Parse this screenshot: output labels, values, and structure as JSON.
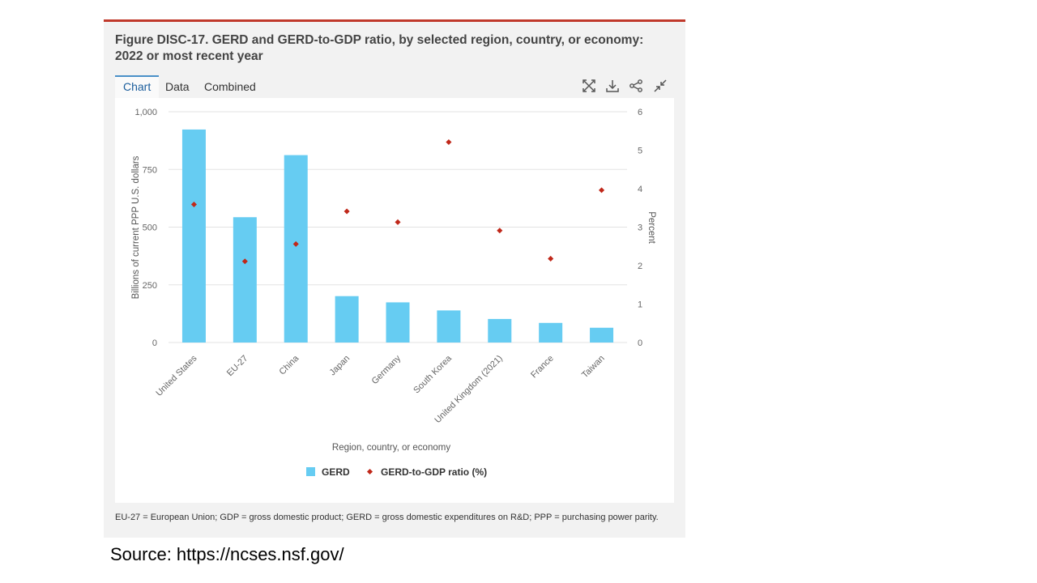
{
  "figure": {
    "title": "Figure DISC-17. GERD and GERD-to-GDP ratio, by selected region, country, or economy: 2022 or most recent year",
    "tabs": [
      "Chart",
      "Data",
      "Combined"
    ],
    "active_tab": "Chart",
    "toolbar_icons": [
      "expand-icon",
      "download-icon",
      "share-icon",
      "collapse-icon"
    ],
    "footnote": "EU-27 = European Union; GDP = gross domestic product; GERD = gross domestic expenditures on R&D; PPP = purchasing power parity.",
    "source": "Source: https://ncses.nsf.gov/"
  },
  "colors": {
    "bar": "#66ccf2",
    "marker": "#c0281a",
    "accent": "#c0392b",
    "tab_active": "#1a5d9c"
  },
  "chart_data": {
    "type": "bar",
    "title": "Figure DISC-17. GERD and GERD-to-GDP ratio, by selected region, country, or economy: 2022 or most recent year",
    "categories": [
      "United States",
      "EU-27",
      "China",
      "Japan",
      "Germany",
      "South Korea",
      "United Kingdom (2021)",
      "France",
      "Taiwan"
    ],
    "series": [
      {
        "name": "GERD",
        "type": "bar",
        "axis": "left",
        "values": [
          923,
          543,
          812,
          201,
          174,
          139,
          102,
          85,
          64
        ]
      },
      {
        "name": "GERD-to-GDP ratio (%)",
        "type": "scatter",
        "axis": "right",
        "values": [
          3.59,
          2.11,
          2.56,
          3.41,
          3.13,
          5.21,
          2.91,
          2.18,
          3.96
        ]
      }
    ],
    "xlabel": "Region, country, or economy",
    "ylabel": "Billions of current PPP U.S. dollars",
    "y2label": "Percent",
    "ylim": [
      0,
      1000
    ],
    "y2lim": [
      0,
      6
    ],
    "yticks": [
      "0",
      "250",
      "500",
      "750",
      "1,000"
    ],
    "yticks_values": [
      0,
      250,
      500,
      750,
      1000
    ],
    "y2ticks": [
      "0",
      "1",
      "2",
      "3",
      "4",
      "5",
      "6"
    ],
    "y2ticks_values": [
      0,
      1,
      2,
      3,
      4,
      5,
      6
    ],
    "legend": [
      "GERD",
      "GERD-to-GDP ratio (%)"
    ],
    "legend_position": "bottom-center",
    "grid": true
  }
}
